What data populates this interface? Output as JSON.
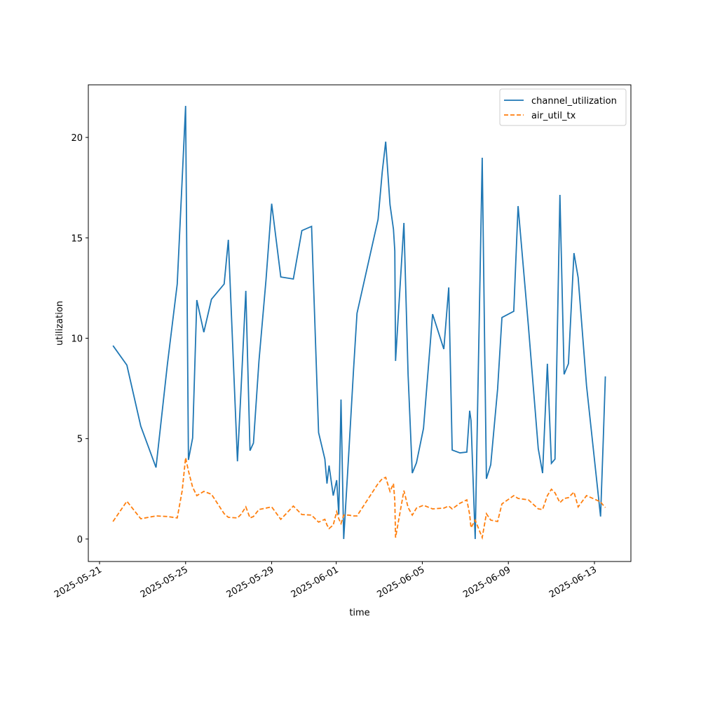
{
  "chart_data": {
    "type": "line",
    "x_label": "time",
    "y_label": "utilization",
    "x": [
      "2025-05-21T15:00",
      "2025-05-22T06:30",
      "2025-05-22T22:00",
      "2025-05-23T15:00",
      "2025-05-24T03:40",
      "2025-05-24T14:40",
      "2025-05-24T20:10",
      "2025-05-25T00:00",
      "2025-05-25T03:10",
      "2025-05-25T07:50",
      "2025-05-25T12:30",
      "2025-05-25T20:20",
      "2025-05-26T04:50",
      "2025-05-26T19:00",
      "2025-05-26T23:40",
      "2025-05-27T09:50",
      "2025-05-27T13:40",
      "2025-05-27T19:10",
      "2025-05-27T23:50",
      "2025-05-28T03:40",
      "2025-05-28T09:50",
      "2025-05-28T17:40",
      "2025-05-29T00:00",
      "2025-05-29T10:10",
      "2025-05-30T00:10",
      "2025-05-30T09:40",
      "2025-05-30T20:30",
      "2025-05-31T04:20",
      "2025-05-31T11:20",
      "2025-05-31T13:40",
      "2025-05-31T16:00",
      "2025-05-31T20:40",
      "2025-06-01T00:30",
      "2025-06-01T02:50",
      "2025-06-01T05:20",
      "2025-06-01T08:20",
      "2025-06-01T13:50",
      "2025-06-01T19:20",
      "2025-06-01T23:10",
      "2025-06-02T22:40",
      "2025-06-03T03:20",
      "2025-06-03T07:10",
      "2025-06-03T12:00",
      "2025-06-03T15:50",
      "2025-06-03T17:20",
      "2025-06-03T18:10",
      "2025-06-04T03:30",
      "2025-06-04T08:10",
      "2025-06-04T12:50",
      "2025-06-04T17:30",
      "2025-06-05T01:20",
      "2025-06-05T11:30",
      "2025-06-06T00:00",
      "2025-06-06T05:30",
      "2025-06-06T09:20",
      "2025-06-06T18:00",
      "2025-06-07T01:40",
      "2025-06-07T04:50",
      "2025-06-07T06:20",
      "2025-06-07T11:00",
      "2025-06-07T18:50",
      "2025-06-07T23:30",
      "2025-06-08T04:20",
      "2025-06-08T12:00",
      "2025-06-08T16:50",
      "2025-06-09T06:00",
      "2025-06-09T10:50",
      "2025-06-09T22:20",
      "2025-06-10T09:20",
      "2025-06-10T14:10",
      "2025-06-10T19:30",
      "2025-06-11T00:00",
      "2025-06-11T04:00",
      "2025-06-11T09:30",
      "2025-06-11T14:10",
      "2025-06-11T19:00",
      "2025-06-12T01:10",
      "2025-06-12T05:50",
      "2025-06-12T15:10",
      "2025-06-13T06:50",
      "2025-06-13T09:50",
      "2025-06-13T12:10"
    ],
    "series": [
      {
        "name": "channel_utilization",
        "color": "#1f77b4",
        "dash": false,
        "values": [
          9.63,
          8.66,
          5.62,
          3.56,
          8.69,
          12.7,
          17.9,
          21.57,
          3.94,
          5.03,
          11.9,
          10.3,
          11.94,
          12.7,
          14.9,
          3.87,
          7.3,
          12.36,
          4.4,
          4.78,
          8.87,
          12.9,
          16.7,
          13.05,
          12.95,
          15.36,
          15.57,
          5.3,
          3.98,
          2.76,
          3.66,
          2.16,
          2.93,
          1.22,
          6.95,
          0,
          4.15,
          8.45,
          11.24,
          15.92,
          18.29,
          19.79,
          16.65,
          15.43,
          14.35,
          8.87,
          15.74,
          8.17,
          3.28,
          3.8,
          5.51,
          11.2,
          9.46,
          12.53,
          4.43,
          4.29,
          4.33,
          6.39,
          5.9,
          0,
          18.99,
          3.0,
          3.7,
          7.47,
          11.03,
          11.34,
          16.58,
          10.61,
          4.5,
          3.28,
          8.73,
          3.77,
          3.98,
          17.14,
          8.2,
          8.73,
          14.24,
          13.02,
          7.64,
          1.12,
          4.92,
          8.1
        ]
      },
      {
        "name": "air_util_tx",
        "color": "#ff7f0e",
        "dash": true,
        "values": [
          0.87,
          1.88,
          1.01,
          1.15,
          1.12,
          1.05,
          2.4,
          4.05,
          3.39,
          2.58,
          2.16,
          2.37,
          2.23,
          1.26,
          1.08,
          1.05,
          1.22,
          1.6,
          1.05,
          1.12,
          1.47,
          1.54,
          1.6,
          0.98,
          1.64,
          1.22,
          1.19,
          0.84,
          0.98,
          0.7,
          0.52,
          0.7,
          1.36,
          1.01,
          0.77,
          1.19,
          1.19,
          1.15,
          1.15,
          2.76,
          3.0,
          3.07,
          2.37,
          2.76,
          1.92,
          0.07,
          2.41,
          1.57,
          1.19,
          1.54,
          1.68,
          1.5,
          1.54,
          1.64,
          1.5,
          1.78,
          1.95,
          1.22,
          0.56,
          0.94,
          0.07,
          1.26,
          0.94,
          0.87,
          1.75,
          2.16,
          2.02,
          1.95,
          1.5,
          1.47,
          2.16,
          2.48,
          2.3,
          1.81,
          2.02,
          2.06,
          2.34,
          1.6,
          2.16,
          1.85,
          1.68,
          1.57
        ]
      }
    ],
    "xlim": [
      "2025-05-20T11:30",
      "2025-06-14T16:40"
    ],
    "xticks": [
      "2025-05-21",
      "2025-05-25",
      "2025-05-29",
      "2025-06-01",
      "2025-06-05",
      "2025-06-09",
      "2025-06-13"
    ],
    "ylim": [
      -1.12,
      22.62
    ],
    "yticks": [
      0,
      5,
      10,
      15,
      20
    ],
    "grid": false,
    "legend": "upper-right"
  }
}
